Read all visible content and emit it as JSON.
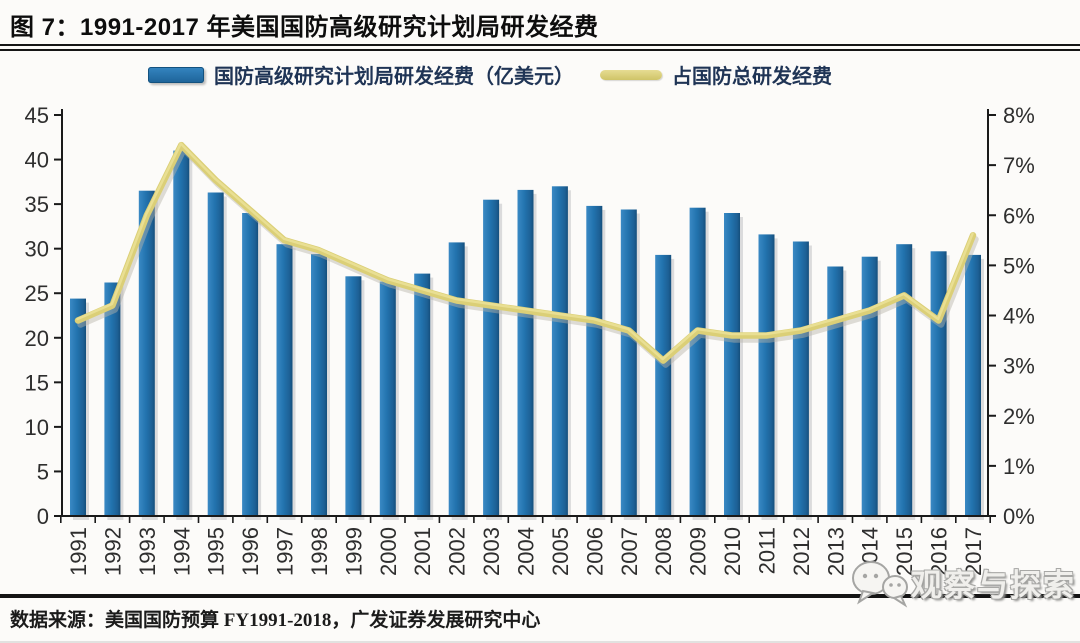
{
  "figure": {
    "title": "图 7：1991-2017 年美国国防高级研究计划局研发经费",
    "source": "数据来源：美国国防预算 FY1991-2018，广发证券发展研究中心",
    "watermark": "观察与探索"
  },
  "legend": [
    {
      "label": "国防高级研究计划局研发经费（亿美元）",
      "type": "bar",
      "color": "#2273ae"
    },
    {
      "label": "占国防总研发经费",
      "type": "line",
      "color": "#dbcf77"
    }
  ],
  "chart_data": {
    "type": "bar+line",
    "title": "1991-2017 年美国国防高级研究计划局研发经费",
    "categories": [
      "1991",
      "1992",
      "1993",
      "1994",
      "1995",
      "1996",
      "1997",
      "1998",
      "1999",
      "2000",
      "2001",
      "2002",
      "2003",
      "2004",
      "2005",
      "2006",
      "2007",
      "2008",
      "2009",
      "2010",
      "2011",
      "2012",
      "2013",
      "2014",
      "2015",
      "2016",
      "2017"
    ],
    "series": [
      {
        "name": "国防高级研究计划局研发经费（亿美元）",
        "type": "bar",
        "axis": "left",
        "color": "#2273ae",
        "values": [
          24.4,
          26.2,
          36.5,
          41.0,
          36.3,
          34.0,
          30.5,
          29.4,
          26.9,
          26.3,
          27.2,
          30.7,
          35.5,
          36.6,
          37.0,
          34.8,
          34.4,
          29.3,
          34.6,
          34.0,
          31.6,
          30.8,
          28.0,
          29.1,
          30.5,
          29.7,
          29.3
        ]
      },
      {
        "name": "占国防总研发经费",
        "type": "line",
        "axis": "right",
        "color": "#dbcf77",
        "values": [
          3.9,
          4.2,
          6.0,
          7.4,
          6.7,
          6.1,
          5.5,
          5.3,
          5.0,
          4.7,
          4.5,
          4.3,
          4.2,
          4.1,
          4.0,
          3.9,
          3.7,
          3.1,
          3.7,
          3.6,
          3.6,
          3.7,
          3.9,
          4.1,
          4.4,
          3.9,
          5.6
        ]
      }
    ],
    "left_axis": {
      "min": 0,
      "max": 45,
      "step": 5,
      "tick_labels": [
        "45",
        "40",
        "35",
        "30",
        "25",
        "20",
        "15",
        "10",
        "5",
        "0"
      ]
    },
    "right_axis": {
      "min": 0,
      "max": 8,
      "step": 1,
      "tick_labels": [
        "8%",
        "7%",
        "6%",
        "5%",
        "4%",
        "3%",
        "2%",
        "1%",
        "0%"
      ]
    },
    "grid": false,
    "legend_position": "top"
  }
}
